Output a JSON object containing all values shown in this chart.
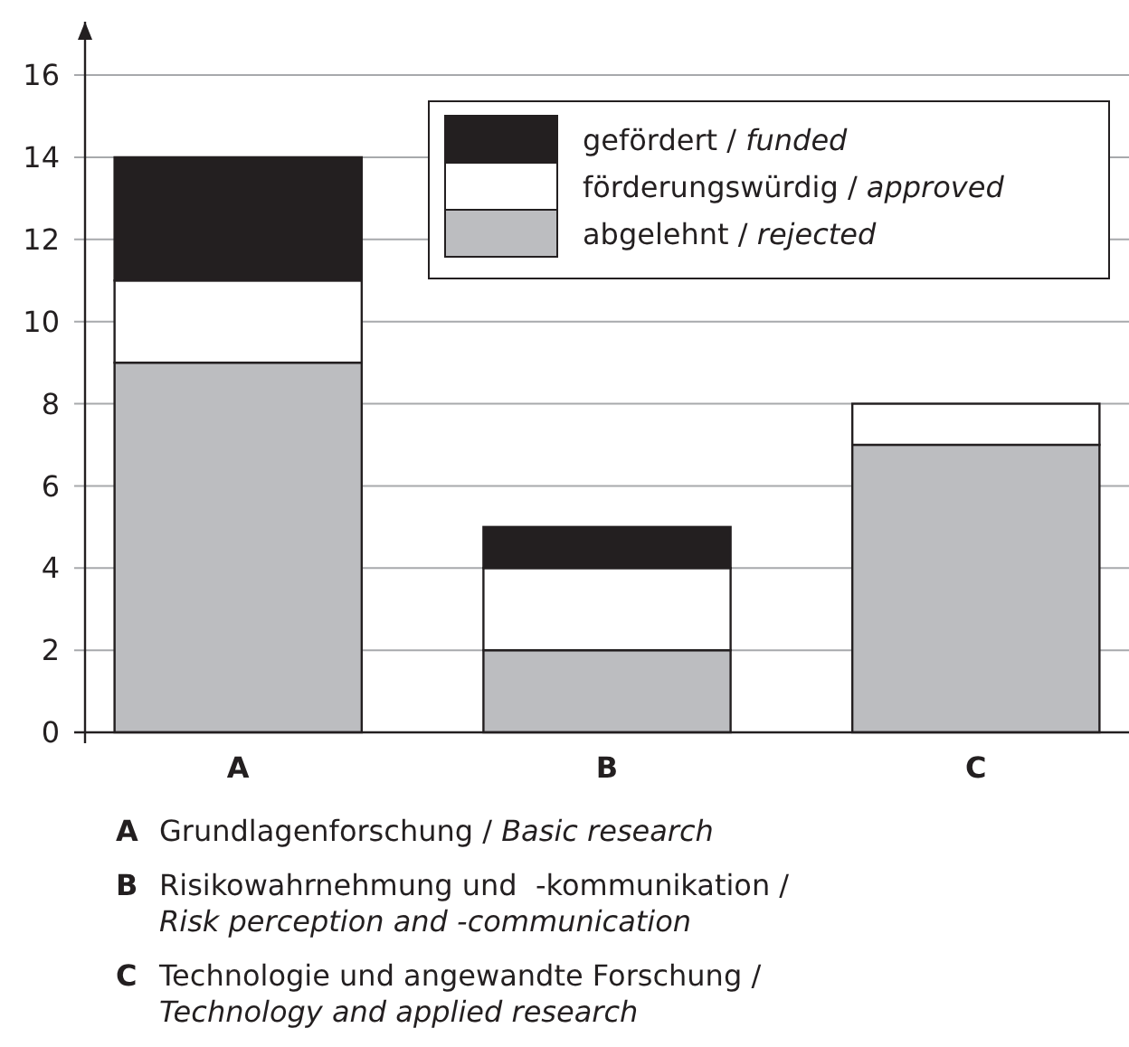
{
  "chart_data": {
    "type": "bar",
    "stacked": true,
    "categories": [
      "A",
      "B",
      "C"
    ],
    "series": [
      {
        "name": "abgelehnt / rejected",
        "color": "#bcbdc0",
        "values": [
          9,
          2,
          7
        ]
      },
      {
        "name": "förderungswürdig / approved",
        "color": "#ffffff",
        "values": [
          2,
          2,
          1
        ]
      },
      {
        "name": "gefördert / funded",
        "color": "#231f20",
        "values": [
          3,
          1,
          0
        ]
      }
    ],
    "ylim": [
      0,
      17.3
    ],
    "yticks": [
      0,
      2,
      4,
      6,
      8,
      10,
      12,
      14,
      16
    ],
    "grid": "y",
    "legend": "top right",
    "annotations": [
      "A Grundlagenforschung / Basic research",
      "B Risikowahrnehmung und  -kommunikation / Risk perception and -communication",
      "C Technologie und angewandte Forschung / Technology and applied research"
    ]
  }
}
